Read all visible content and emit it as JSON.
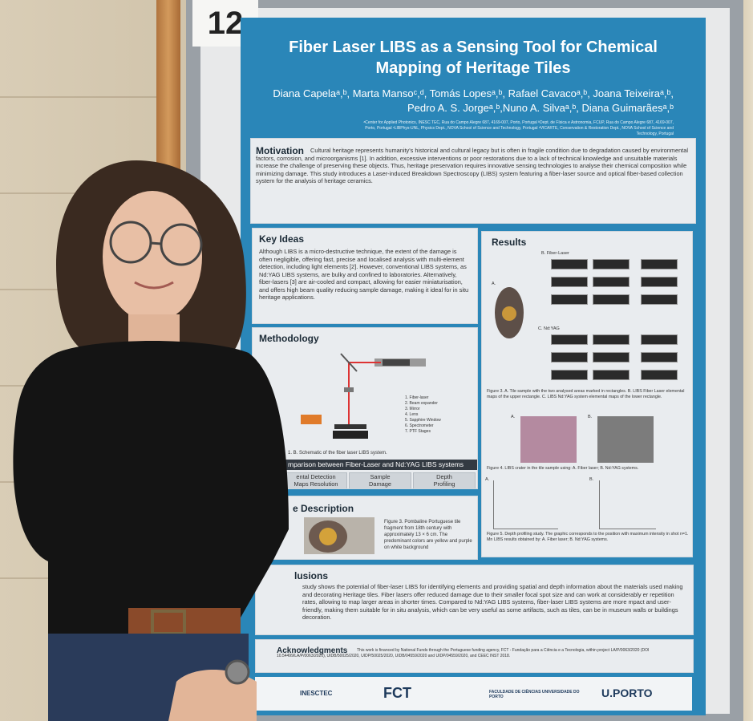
{
  "colors": {
    "poster_blue": "#2a86b8",
    "panel": "#e9ecef",
    "sweater": "#141414"
  },
  "board_number": "12",
  "poster": {
    "title_line1": "Fiber Laser LIBS as a Sensing Tool for Chemical",
    "title_line2": "Mapping of Heritage Tiles",
    "authors_line1": "Diana Capelaᵃ,ᵇ, Marta Mansoᶜ,ᵈ, Tomás Lopesᵃ,ᵇ, Rafael Cavacoᵃ,ᵇ, Joana Teixeiraᵃ,ᵇ,",
    "authors_line2": "Pedro A. S. Jorgeᵃ,ᵇ,Nuno A. Silvaᵃ,ᵇ, Diana Guimarãesᵃ,ᵇ",
    "affiliations": "ᵃCenter for Applied Photonics, INESC TEC, Rua do Campo Alegre 687, 4169-007, Porto, Portugal ᵇDept. de Física e Astronomia, FCUP, Rua do Campo Alegre 687, 4169-007, Porto, Portugal ᶜLIBPhys-UNL, Physics Dept., NOVA School of Science and Technology, Portugal ᵈVICARTE, Conservation & Restoration Dept., NOVA School of Science and Technology, Portugal",
    "motivation": {
      "heading": "Motivation",
      "text": "Cultural heritage represents humanity's historical and cultural legacy but is often in fragile condition due to degradation caused by environmental factors, corrosion, and microorganisms [1]. In addition, excessive interventions or poor restorations due to a lack of technical knowledge and unsuitable materials increase the challenge of preserving these objects. Thus, heritage preservation requires innovative sensing technologies to analyse their chemical composition while minimizing damage. This study introduces a Laser-induced Breakdown Spectroscopy (LIBS) system featuring a fiber-laser source and optical fiber-based collection system for the analysis of heritage ceramics."
    },
    "key_ideas": {
      "heading": "Key Ideas",
      "text": "Although LIBS is a micro-destructive technique, the extent of the damage is often negligible, offering fast, precise and localised analysis with multi-element detection, including light elements [2]. However, conventional LIBS systems, as Nd:YAG LIBS systems, are bulky and confined to laboratories. Alternatively, fiber-lasers [3] are air-cooled and compact, allowing for easier miniaturisation, and offers high beam quality reducing sample damage, making it ideal for in situ heritage applications."
    },
    "methodology": {
      "heading": "Methodology",
      "legend": [
        "1. Fiber-laser",
        "2. Beam expander",
        "3. Mirror",
        "4. Lens",
        "5. Sapphire Window",
        "6. Spectrometer",
        "7. PTF Stages"
      ],
      "caption": "1. B. Schematic of the fiber laser LIBS system.",
      "comparison_bar": "mparison between Fiber-Laser and Nd:YAG LIBS systems",
      "compare_1": "ental Detection\nMaps Resolution",
      "compare_2": "Sample\nDamage",
      "compare_3": "Depth\nProfiling"
    },
    "sample": {
      "heading": "e Description",
      "text": "Figure 3. Pombaline Portuguese tile fragment from 18th century with approximately 13 × 6 cm. The predominant colors are yellow and purple on white background"
    },
    "results": {
      "heading": "Results",
      "label_b": "B. Fiber-Laser",
      "label_a": "A.",
      "label_c": "C. Nd:YAG",
      "fig3_caption": "Figure 3. A. Tile sample with the two analysed areas marked in rectangles. B. LIBS Fiber Laser elemental maps of the upper rectangle. C. LIBS Nd:YAG system elemental maps of the lower rectangle.",
      "fig4_label_a": "A.",
      "fig4_label_b": "B.",
      "fig4_caption": "Figure 4. LIBS crater in the tile sample using: A. Fiber laser; B. Nd:YAG systems.",
      "fig5_label_a": "A.",
      "fig5_label_b": "B.",
      "fig5_caption": "Figure 5. Depth profiling study. The graphic corresponds to the position with maximum intensity in shot n=1. Mn LIBS results obtained by: A. Fiber laser; B. Nd:YAG systems."
    },
    "conclusions": {
      "heading": "lusions",
      "text": "study shows the potential of fiber-laser LIBS for identifying elements and providing spatial and depth information about the materials used making and decorating Heritage tiles. Fiber lasers offer reduced damage due to their smaller focal spot size and can work at considerably er repetition rates, allowing to map larger areas in shorter times. Compared to Nd:YAG LIBS systems, fiber-laser LIBS systems are more mpact and user-friendly, making them suitable for in situ analysis, which can be very useful as some artifacts, such as tiles, can be in museum walls or buildings decoration."
    },
    "acknowledgments": {
      "heading": "Acknowledgments",
      "text": "This work is financed by National Funds through the Portuguese funding agency, FCT - Fundação para a Ciência e a Tecnologia, within project LA/P/0063/2020 (DOI 10.54499/LA/P/0063/2020), UIDB/50025/2020, UIDP/50025/2020, UIDB/04559/2020 and UIDP/04559/2020, and CEEC INST 2018."
    },
    "logos": {
      "inesc": "INESCTEC",
      "fct": "FCT",
      "fc": "FACULDADE DE CIÊNCIAS UNIVERSIDADE DO PORTO",
      "uporto": "U.PORTO"
    }
  }
}
